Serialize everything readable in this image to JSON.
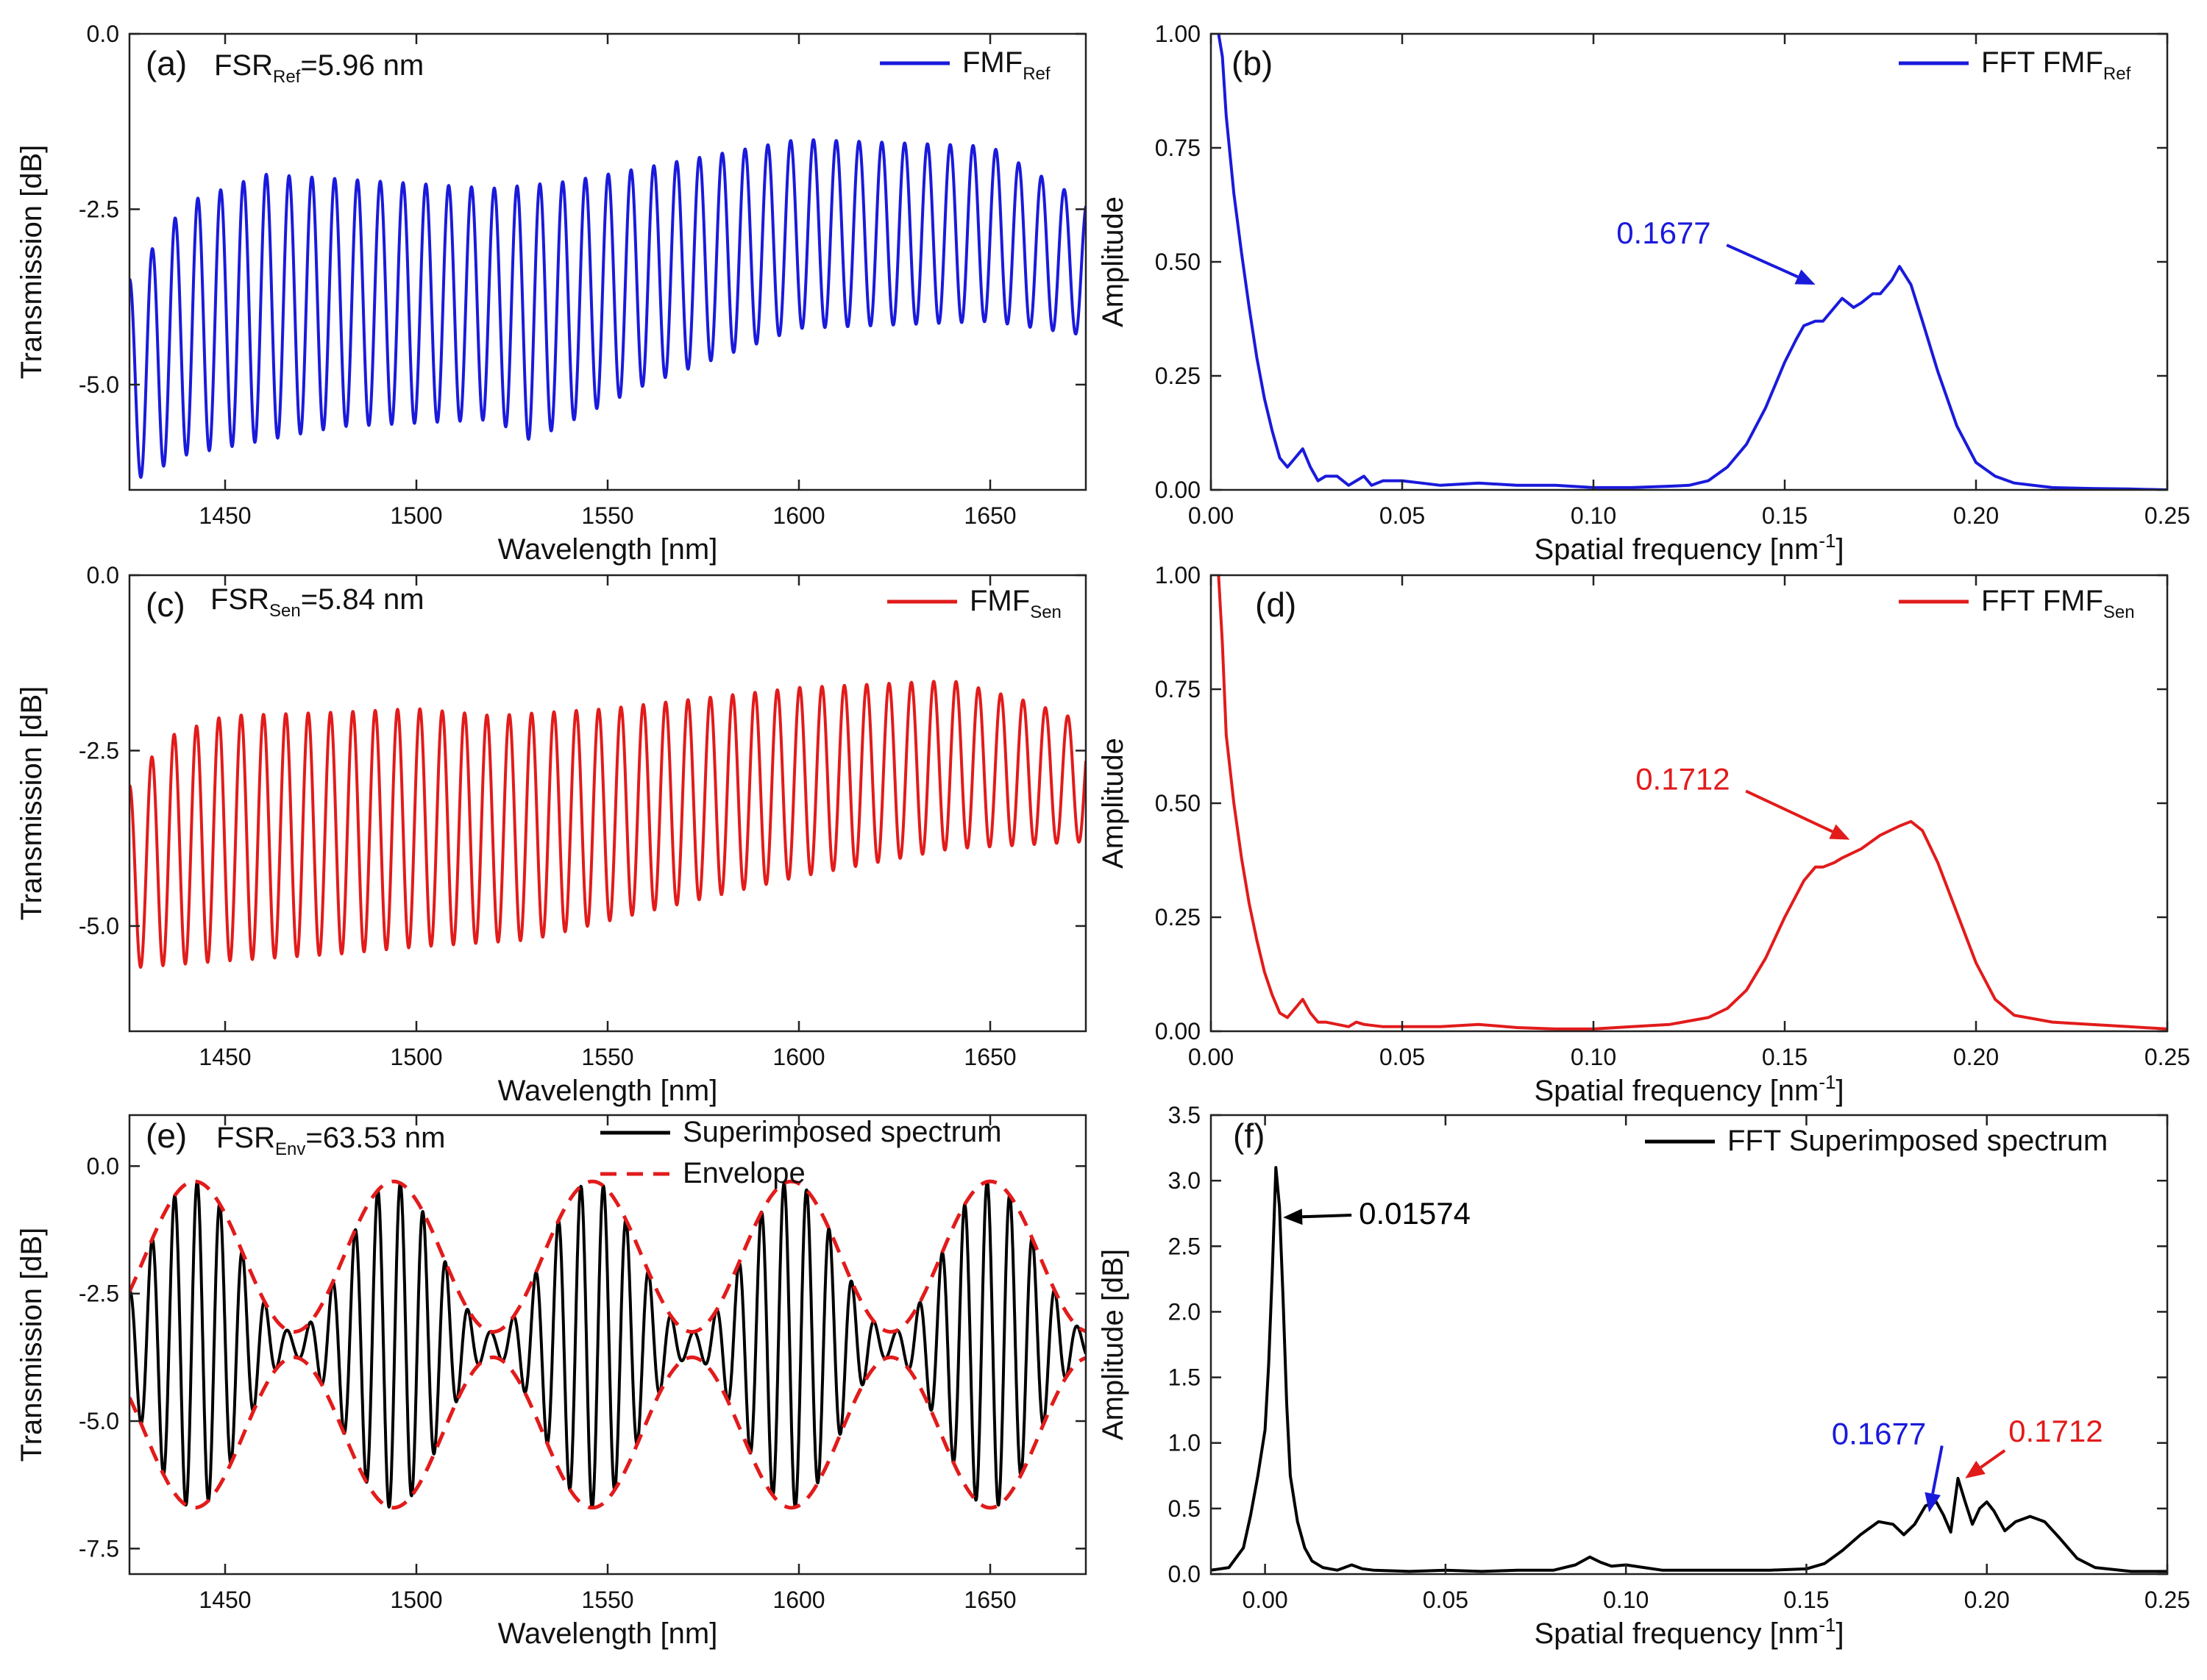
{
  "figure": {
    "description_free": true
  },
  "chart_data": [
    {
      "id": "a",
      "type": "line",
      "panel_label": "(a)",
      "fsr": {
        "main": "FSR",
        "sub": "Ref",
        "rest": "=5.96 nm"
      },
      "legend": [
        {
          "main": "FMF",
          "sub": "Ref",
          "color": "#1a1adb",
          "style": "solid"
        }
      ],
      "xlabel": "Wavelength [nm]",
      "ylabel": "Transmission [dB]",
      "xlim": [
        1425,
        1675
      ],
      "ylim": [
        -6.5,
        0.0
      ],
      "xticks": [
        1450,
        1500,
        1550,
        1600,
        1650
      ],
      "xtick_labels": [
        "1450",
        "1500",
        "1550",
        "1600",
        "1650"
      ],
      "yticks": [
        0.0,
        -2.5,
        -5.0
      ],
      "ytick_labels": [
        "0.0",
        "-2.5",
        "-5.0"
      ],
      "series": [
        {
          "name": "FMF Ref",
          "color": "#1a1adb",
          "kind": "fringe",
          "period": 5.96,
          "top": {
            "x": [
              1425,
              1440,
              1460,
              1520,
              1540,
              1600,
              1650,
              1675
            ],
            "y": [
              -3.5,
              -2.4,
              -2.0,
              -2.2,
              -2.1,
              -1.5,
              -1.6,
              -2.4
            ]
          },
          "bottom": {
            "x": [
              1425,
              1440,
              1480,
              1520,
              1530,
              1560,
              1600,
              1650,
              1675
            ],
            "y": [
              -6.4,
              -6.0,
              -5.6,
              -5.5,
              -5.8,
              -5.0,
              -4.2,
              -4.1,
              -4.3
            ]
          }
        }
      ]
    },
    {
      "id": "b",
      "type": "line",
      "panel_label": "(b)",
      "legend": [
        {
          "main": "FFT FMF",
          "sub": "Ref",
          "color": "#1a1adb",
          "style": "solid"
        }
      ],
      "xlabel": "Spatial frequency [nm",
      "xlabel_sup": "-1",
      "xlabel_end": "]",
      "ylabel": "Amplitude",
      "xlim": [
        0.0,
        0.25
      ],
      "ylim": [
        0.0,
        1.0
      ],
      "xticks": [
        0.0,
        0.05,
        0.1,
        0.15,
        0.2,
        0.25
      ],
      "xtick_labels": [
        "0.00",
        "0.05",
        "0.10",
        "0.15",
        "0.20",
        "0.25"
      ],
      "yticks": [
        0.0,
        0.25,
        0.5,
        0.75,
        1.0
      ],
      "ytick_labels": [
        "0.00",
        "0.25",
        "0.50",
        "0.75",
        "1.00"
      ],
      "annotations": [
        {
          "text": "0.1677",
          "color": "#1a1adb",
          "text_x": 0.106,
          "text_y": 0.54,
          "x": 0.158,
          "y": 0.45
        }
      ],
      "series": [
        {
          "name": "FFT FMF Ref",
          "color": "#1a1adb",
          "kind": "xy",
          "x": [
            0.002,
            0.003,
            0.004,
            0.006,
            0.008,
            0.01,
            0.012,
            0.014,
            0.016,
            0.018,
            0.02,
            0.022,
            0.024,
            0.026,
            0.028,
            0.03,
            0.033,
            0.036,
            0.038,
            0.04,
            0.042,
            0.045,
            0.05,
            0.055,
            0.06,
            0.07,
            0.08,
            0.09,
            0.1,
            0.11,
            0.12,
            0.125,
            0.13,
            0.135,
            0.14,
            0.145,
            0.15,
            0.153,
            0.155,
            0.158,
            0.16,
            0.163,
            0.165,
            0.168,
            0.17,
            0.173,
            0.175,
            0.178,
            0.18,
            0.183,
            0.186,
            0.19,
            0.195,
            0.2,
            0.205,
            0.21,
            0.22,
            0.23,
            0.24,
            0.25
          ],
          "y": [
            1.0,
            0.95,
            0.82,
            0.65,
            0.52,
            0.4,
            0.29,
            0.2,
            0.13,
            0.07,
            0.05,
            0.07,
            0.09,
            0.05,
            0.02,
            0.03,
            0.03,
            0.01,
            0.02,
            0.03,
            0.01,
            0.02,
            0.02,
            0.015,
            0.01,
            0.015,
            0.01,
            0.01,
            0.005,
            0.005,
            0.008,
            0.01,
            0.02,
            0.05,
            0.1,
            0.18,
            0.28,
            0.33,
            0.36,
            0.37,
            0.37,
            0.4,
            0.42,
            0.4,
            0.41,
            0.43,
            0.43,
            0.46,
            0.49,
            0.45,
            0.37,
            0.26,
            0.14,
            0.06,
            0.03,
            0.015,
            0.005,
            0.003,
            0.002,
            0.0
          ]
        }
      ]
    },
    {
      "id": "c",
      "type": "line",
      "panel_label": "(c)",
      "fsr": {
        "main": "FSR",
        "sub": "Sen",
        "rest": "=5.84 nm"
      },
      "legend": [
        {
          "main": "FMF",
          "sub": "Sen",
          "color": "#e21b1b",
          "style": "solid"
        }
      ],
      "xlabel": "Wavelength [nm]",
      "ylabel": "Transmission [dB]",
      "xlim": [
        1425,
        1675
      ],
      "ylim": [
        -6.5,
        0.0
      ],
      "xticks": [
        1450,
        1500,
        1550,
        1600,
        1650
      ],
      "xtick_labels": [
        "1450",
        "1500",
        "1550",
        "1600",
        "1650"
      ],
      "yticks": [
        0.0,
        -2.5,
        -5.0
      ],
      "ytick_labels": [
        "0.0",
        "-2.5",
        "-5.0"
      ],
      "series": [
        {
          "name": "FMF Sen",
          "color": "#e21b1b",
          "kind": "fringe",
          "period": 5.84,
          "top": {
            "x": [
              1425,
              1435,
              1450,
              1480,
              1500,
              1520,
              1550,
              1600,
              1640,
              1660,
              1675
            ],
            "y": [
              -3.0,
              -2.3,
              -2.0,
              -1.95,
              -1.9,
              -2.0,
              -1.9,
              -1.6,
              -1.5,
              -1.8,
              -2.1
            ]
          },
          "bottom": {
            "x": [
              1425,
              1450,
              1480,
              1500,
              1530,
              1560,
              1600,
              1640,
              1675
            ],
            "y": [
              -5.6,
              -5.5,
              -5.4,
              -5.3,
              -5.2,
              -4.8,
              -4.3,
              -3.9,
              -3.8
            ]
          }
        }
      ]
    },
    {
      "id": "d",
      "type": "line",
      "panel_label": "(d)",
      "legend": [
        {
          "main": "FFT FMF",
          "sub": "Sen",
          "color": "#e21b1b",
          "style": "solid"
        }
      ],
      "xlabel": "Spatial frequency [nm",
      "xlabel_sup": "-1",
      "xlabel_end": "]",
      "ylabel": "Amplitude",
      "xlim": [
        0.0,
        0.25
      ],
      "ylim": [
        0.0,
        1.0
      ],
      "xticks": [
        0.0,
        0.05,
        0.1,
        0.15,
        0.2,
        0.25
      ],
      "xtick_labels": [
        "0.00",
        "0.05",
        "0.10",
        "0.15",
        "0.20",
        "0.25"
      ],
      "yticks": [
        0.0,
        0.25,
        0.5,
        0.75,
        1.0
      ],
      "ytick_labels": [
        "0.00",
        "0.25",
        "0.50",
        "0.75",
        "1.00"
      ],
      "annotations": [
        {
          "text": "0.1712",
          "color": "#e21b1b",
          "text_x": 0.111,
          "text_y": 0.53,
          "x": 0.167,
          "y": 0.42
        }
      ],
      "series": [
        {
          "name": "FFT FMF Sen",
          "color": "#e21b1b",
          "kind": "xy",
          "x": [
            0.002,
            0.003,
            0.004,
            0.006,
            0.008,
            0.01,
            0.012,
            0.014,
            0.016,
            0.018,
            0.02,
            0.022,
            0.024,
            0.026,
            0.028,
            0.03,
            0.033,
            0.036,
            0.038,
            0.04,
            0.045,
            0.05,
            0.06,
            0.07,
            0.08,
            0.09,
            0.1,
            0.11,
            0.12,
            0.13,
            0.135,
            0.14,
            0.145,
            0.15,
            0.155,
            0.158,
            0.16,
            0.163,
            0.165,
            0.17,
            0.175,
            0.18,
            0.183,
            0.186,
            0.19,
            0.195,
            0.2,
            0.205,
            0.21,
            0.22,
            0.23,
            0.24,
            0.25
          ],
          "y": [
            1.0,
            0.85,
            0.65,
            0.5,
            0.38,
            0.28,
            0.2,
            0.13,
            0.08,
            0.04,
            0.03,
            0.05,
            0.07,
            0.04,
            0.02,
            0.02,
            0.015,
            0.01,
            0.02,
            0.015,
            0.01,
            0.01,
            0.01,
            0.015,
            0.008,
            0.005,
            0.005,
            0.01,
            0.015,
            0.03,
            0.05,
            0.09,
            0.16,
            0.25,
            0.33,
            0.36,
            0.36,
            0.37,
            0.38,
            0.4,
            0.43,
            0.45,
            0.46,
            0.44,
            0.37,
            0.26,
            0.15,
            0.07,
            0.035,
            0.02,
            0.015,
            0.01,
            0.005
          ]
        }
      ]
    },
    {
      "id": "e",
      "type": "line",
      "panel_label": "(e)",
      "fsr": {
        "main": "FSR",
        "sub": "Env",
        "rest": "=63.53 nm"
      },
      "legend": [
        {
          "main": "Superimposed spectrum",
          "sub": "",
          "color": "#000000",
          "style": "solid"
        },
        {
          "main": "Envelope",
          "sub": "",
          "color": "#e21b1b",
          "style": "dashed"
        }
      ],
      "xlabel": "Wavelength [nm]",
      "ylabel": "Transmission [dB]",
      "xlim": [
        1425,
        1675
      ],
      "ylim": [
        -8.0,
        1.0
      ],
      "xticks": [
        1450,
        1500,
        1550,
        1600,
        1650
      ],
      "xtick_labels": [
        "1450",
        "1500",
        "1550",
        "1600",
        "1650"
      ],
      "yticks": [
        0.0,
        -2.5,
        -5.0,
        -7.5
      ],
      "ytick_labels": [
        "0.0",
        "-2.5",
        "-5.0",
        "-7.5"
      ],
      "series": [
        {
          "name": "Superimposed spectrum",
          "color": "#000000",
          "kind": "beat",
          "period": 5.9,
          "env_period": 52.0,
          "env_phase_x": 1442.0,
          "mean": -3.5,
          "amp_max": 3.2,
          "amp_min": 0.25
        },
        {
          "name": "Envelope",
          "color": "#e21b1b",
          "kind": "envelope",
          "env_period": 52.0,
          "env_phase_x": 1442.0,
          "mean": -3.5,
          "amp_max": 3.2,
          "amp_min": 0.25
        }
      ]
    },
    {
      "id": "f",
      "type": "line",
      "panel_label": "(f)",
      "legend": [
        {
          "main": "FFT Superimposed spectrum",
          "sub": "",
          "color": "#000000",
          "style": "solid"
        }
      ],
      "xlabel": "Spatial frequency [nm",
      "xlabel_sup": "-1",
      "xlabel_end": "]",
      "ylabel": "Amplitude [dB]",
      "xlim": [
        -0.015,
        0.25
      ],
      "ylim": [
        0.0,
        3.5
      ],
      "xticks": [
        0.0,
        0.05,
        0.1,
        0.15,
        0.2,
        0.25
      ],
      "xtick_labels": [
        "0.00",
        "0.05",
        "0.10",
        "0.15",
        "0.20",
        "0.25"
      ],
      "yticks": [
        0.0,
        0.5,
        1.0,
        1.5,
        2.0,
        2.5,
        3.0,
        3.5
      ],
      "ytick_labels": [
        "0.0",
        "0.5",
        "1.0",
        "1.5",
        "2.0",
        "2.5",
        "3.0",
        "3.5"
      ],
      "annotations": [
        {
          "text": "0.01574",
          "color": "#000000",
          "text_x": 0.026,
          "text_y": 2.67,
          "x": 0.005,
          "y": 2.72
        },
        {
          "text": "0.1677",
          "color": "#1a1adb",
          "text_x": 0.157,
          "text_y": 0.99,
          "x": 0.184,
          "y": 0.47
        },
        {
          "text": "0.1712",
          "color": "#e21b1b",
          "text_x": 0.206,
          "text_y": 1.01,
          "x": 0.194,
          "y": 0.73
        }
      ],
      "series": [
        {
          "name": "FFT Superimposed spectrum",
          "color": "#000000",
          "kind": "xy",
          "x": [
            -0.015,
            -0.01,
            -0.006,
            -0.004,
            -0.002,
            0.0,
            0.001,
            0.002,
            0.003,
            0.004,
            0.005,
            0.006,
            0.007,
            0.009,
            0.011,
            0.013,
            0.016,
            0.02,
            0.024,
            0.027,
            0.03,
            0.04,
            0.05,
            0.06,
            0.07,
            0.08,
            0.086,
            0.09,
            0.093,
            0.096,
            0.1,
            0.105,
            0.11,
            0.12,
            0.13,
            0.14,
            0.15,
            0.155,
            0.16,
            0.165,
            0.17,
            0.174,
            0.177,
            0.18,
            0.183,
            0.186,
            0.188,
            0.19,
            0.192,
            0.194,
            0.196,
            0.198,
            0.2,
            0.202,
            0.205,
            0.208,
            0.212,
            0.216,
            0.22,
            0.225,
            0.23,
            0.24,
            0.25
          ],
          "y": [
            0.03,
            0.05,
            0.2,
            0.45,
            0.75,
            1.1,
            1.6,
            2.3,
            3.1,
            2.8,
            2.1,
            1.3,
            0.75,
            0.4,
            0.2,
            0.1,
            0.05,
            0.03,
            0.07,
            0.04,
            0.03,
            0.02,
            0.03,
            0.02,
            0.03,
            0.03,
            0.07,
            0.13,
            0.09,
            0.06,
            0.07,
            0.05,
            0.03,
            0.03,
            0.03,
            0.03,
            0.04,
            0.08,
            0.18,
            0.3,
            0.4,
            0.38,
            0.3,
            0.38,
            0.52,
            0.55,
            0.45,
            0.32,
            0.73,
            0.55,
            0.38,
            0.5,
            0.55,
            0.48,
            0.33,
            0.4,
            0.44,
            0.4,
            0.28,
            0.12,
            0.05,
            0.02,
            0.02
          ]
        }
      ]
    }
  ]
}
